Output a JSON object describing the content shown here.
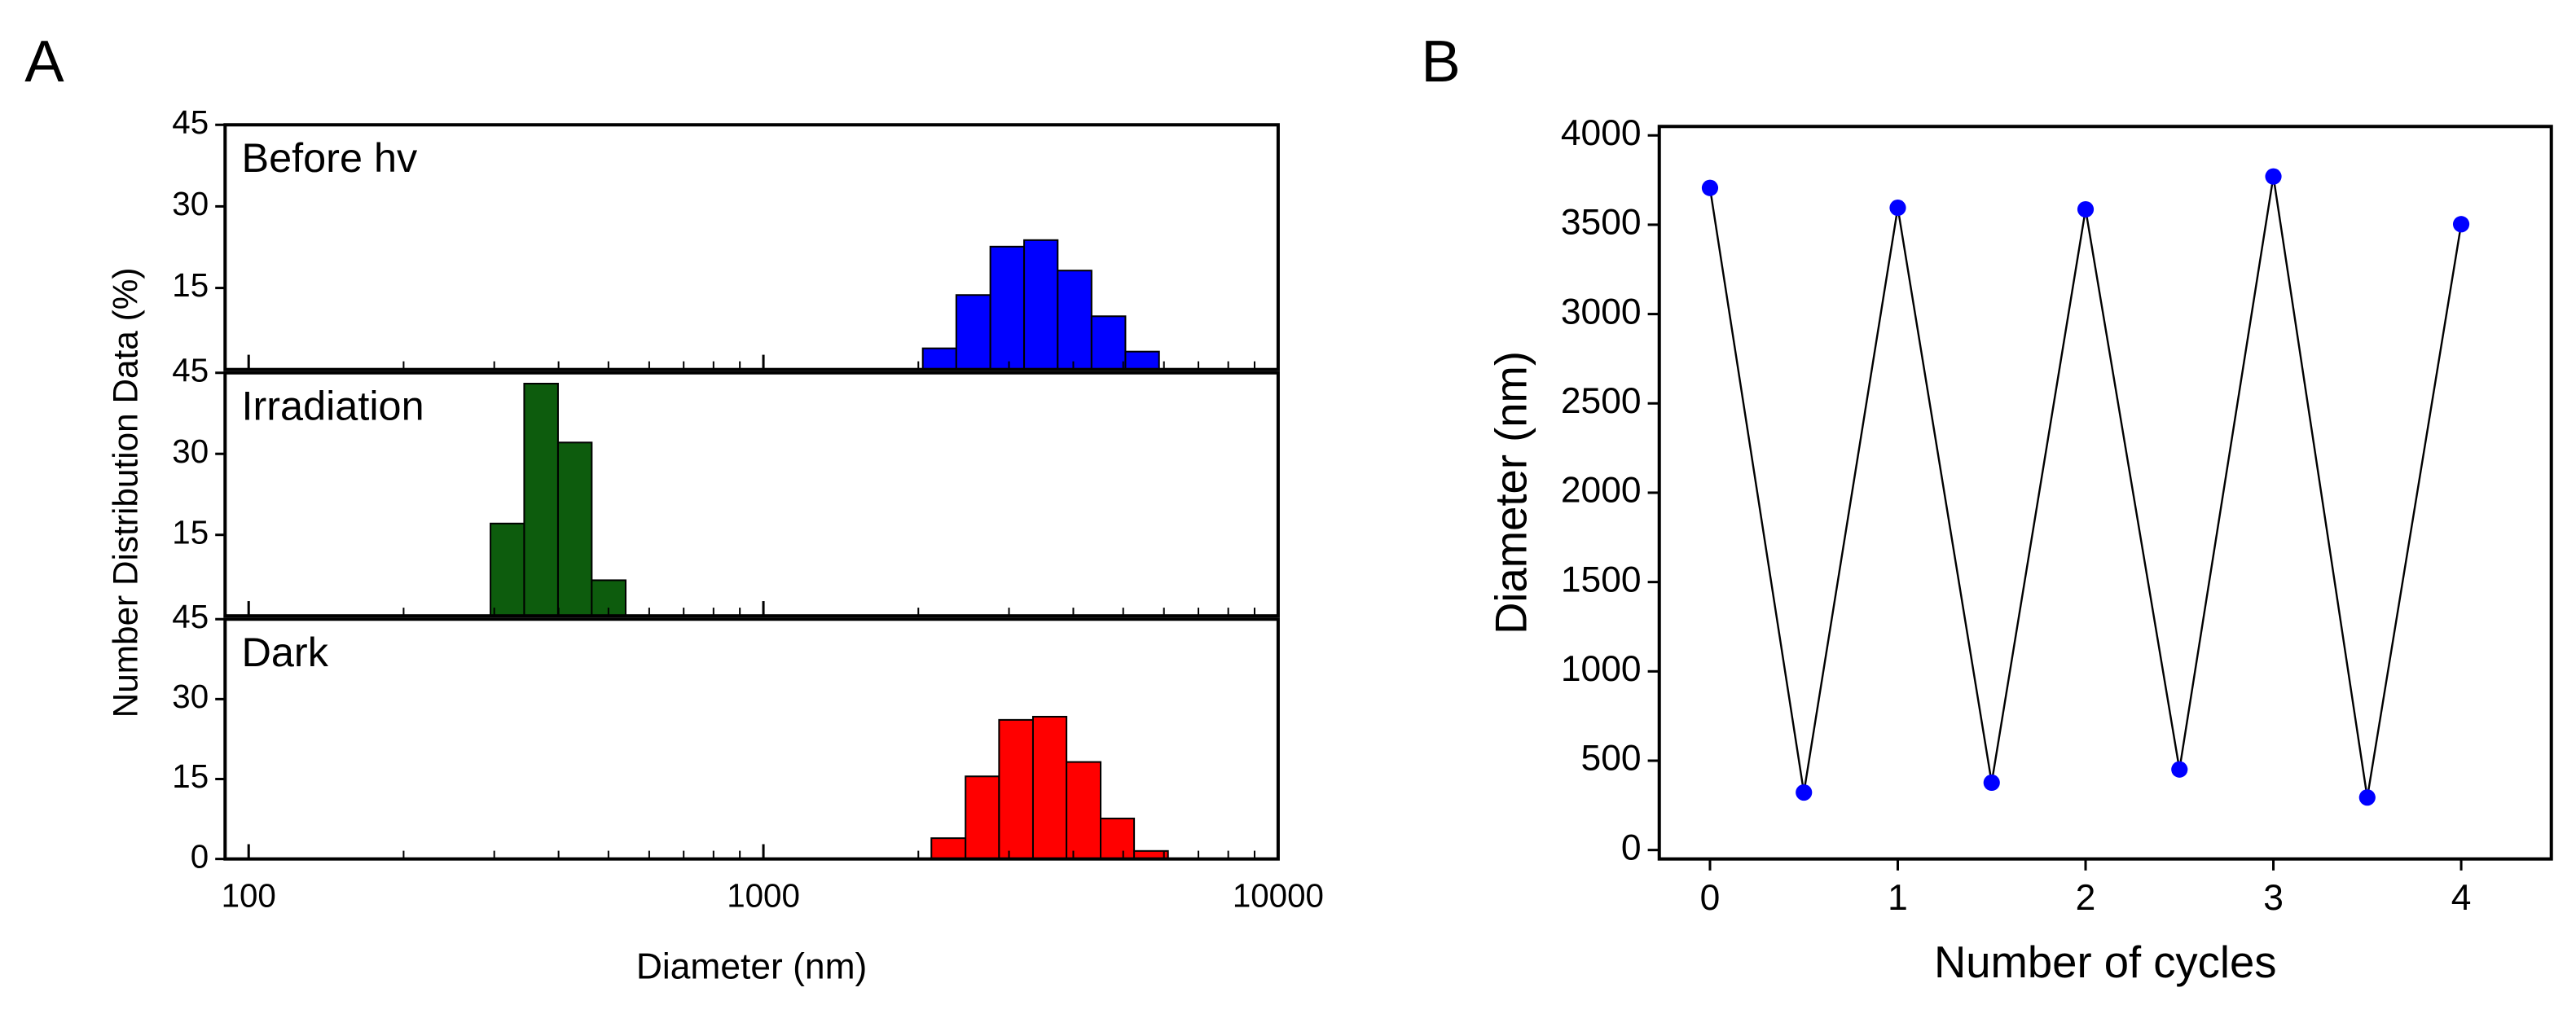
{
  "chart_data": [
    {
      "type": "histogram",
      "panel": "A",
      "xlabel": "Diameter (nm)",
      "ylabel": "Number Distribution Data (%)",
      "xscale": "log",
      "xlim": [
        90,
        10000
      ],
      "xticks": [
        100,
        1000,
        10000
      ],
      "xminorticks": [
        200,
        300,
        400,
        500,
        600,
        700,
        800,
        900,
        2000,
        3000,
        4000,
        5000,
        6000,
        7000,
        8000,
        9000
      ],
      "subplots": [
        {
          "label": "Before hv",
          "color": "#0000ff",
          "bins": [
            2040,
            2370,
            2760,
            3210,
            3730,
            4340,
            5050,
            5870
          ],
          "values": [
            3.9,
            13.7,
            22.6,
            23.8,
            18.2,
            9.8,
            3.3
          ],
          "ylim": [
            0,
            45
          ],
          "yticks": [
            15,
            30,
            45
          ]
        },
        {
          "label": "Irradiation",
          "color": "#0d5c0d",
          "bins": [
            295,
            343,
            399,
            464,
            540
          ],
          "values": [
            17.1,
            43,
            32.1,
            6.6
          ],
          "ylim": [
            0,
            45
          ],
          "yticks": [
            15,
            30,
            45
          ]
        },
        {
          "label": "Dark",
          "color": "#ff0000",
          "bins": [
            2120,
            2470,
            2870,
            3340,
            3880,
            4520,
            5250,
            6110
          ],
          "values": [
            3.9,
            15.5,
            26.1,
            26.7,
            18.2,
            7.6,
            1.5
          ],
          "ylim": [
            0,
            45
          ],
          "yticks": [
            0,
            15,
            30,
            45
          ]
        }
      ]
    },
    {
      "type": "line",
      "panel": "B",
      "xlabel": "Number of cycles",
      "ylabel": "Diameter (nm)",
      "x": [
        0,
        0.5,
        1,
        1.5,
        2,
        2.5,
        3,
        3.5,
        4
      ],
      "values": [
        3706,
        322,
        3595,
        377,
        3586,
        451,
        3770,
        294,
        3503
      ],
      "line_color": "#000000",
      "marker_color": "#0000ff",
      "xlim": [
        -0.27,
        4.48
      ],
      "xticks": [
        0,
        1,
        2,
        3,
        4
      ],
      "ylim": [
        -50,
        4050
      ],
      "yticks": [
        0,
        500,
        1000,
        1500,
        2000,
        2500,
        3000,
        3500,
        4000
      ]
    }
  ]
}
